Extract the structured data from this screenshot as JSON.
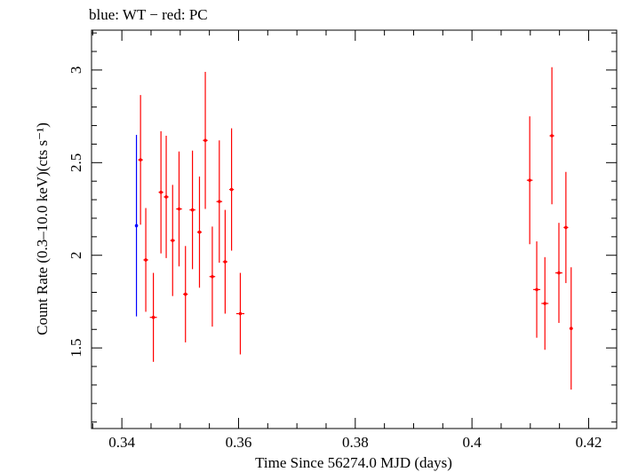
{
  "chart_data": {
    "type": "scatter",
    "title": "blue: WT − red: PC",
    "xlabel": "Time Since 56274.0 MJD (days)",
    "ylabel": "Count Rate (0.3–10.0 keV)(cts s⁻¹)",
    "xlim": [
      0.3348,
      0.4248
    ],
    "ylim": [
      1.065,
      3.215
    ],
    "xticks": [
      0.34,
      0.36,
      0.38,
      0.4,
      0.42
    ],
    "xtick_labels": [
      "0.34",
      "0.36",
      "0.38",
      "0.4",
      "0.42"
    ],
    "yticks": [
      1.5,
      2,
      2.5,
      3
    ],
    "ytick_labels": [
      "1.5",
      "2",
      "2.5",
      "3"
    ],
    "grid": false,
    "series": [
      {
        "name": "WT",
        "color": "#0000ff",
        "points": [
          {
            "x": 0.3425,
            "y": 2.16,
            "yerr": 0.49,
            "xerr": 0.0
          }
        ]
      },
      {
        "name": "PC",
        "color": "#ff0000",
        "points": [
          {
            "x": 0.3432,
            "y": 2.515,
            "yerr": 0.35,
            "xerr": 0.0004
          },
          {
            "x": 0.3441,
            "y": 1.975,
            "yerr": 0.28,
            "xerr": 0.0004
          },
          {
            "x": 0.3454,
            "y": 1.665,
            "yerr": 0.24,
            "xerr": 0.0006
          },
          {
            "x": 0.3467,
            "y": 2.34,
            "yerr": 0.33,
            "xerr": 0.0004
          },
          {
            "x": 0.3476,
            "y": 2.315,
            "yerr": 0.33,
            "xerr": 0.0004
          },
          {
            "x": 0.3487,
            "y": 2.08,
            "yerr": 0.3,
            "xerr": 0.0004
          },
          {
            "x": 0.3498,
            "y": 2.25,
            "yerr": 0.31,
            "xerr": 0.0005
          },
          {
            "x": 0.3509,
            "y": 1.79,
            "yerr": 0.26,
            "xerr": 0.0004
          },
          {
            "x": 0.3521,
            "y": 2.245,
            "yerr": 0.32,
            "xerr": 0.0005
          },
          {
            "x": 0.3533,
            "y": 2.125,
            "yerr": 0.3,
            "xerr": 0.0004
          },
          {
            "x": 0.3543,
            "y": 2.62,
            "yerr": 0.37,
            "xerr": 0.0004
          },
          {
            "x": 0.3555,
            "y": 1.885,
            "yerr": 0.27,
            "xerr": 0.0005
          },
          {
            "x": 0.3567,
            "y": 2.29,
            "yerr": 0.33,
            "xerr": 0.0005
          },
          {
            "x": 0.3577,
            "y": 1.965,
            "yerr": 0.28,
            "xerr": 0.0004
          },
          {
            "x": 0.3588,
            "y": 2.355,
            "yerr": 0.33,
            "xerr": 0.0004
          },
          {
            "x": 0.3603,
            "y": 1.685,
            "yerr": 0.22,
            "xerr": 0.0007
          },
          {
            "x": 0.4099,
            "y": 2.405,
            "yerr": 0.345,
            "xerr": 0.0005
          },
          {
            "x": 0.4111,
            "y": 1.815,
            "yerr": 0.26,
            "xerr": 0.0006
          },
          {
            "x": 0.4125,
            "y": 1.74,
            "yerr": 0.25,
            "xerr": 0.0006
          },
          {
            "x": 0.4137,
            "y": 2.645,
            "yerr": 0.37,
            "xerr": 0.0004
          },
          {
            "x": 0.4149,
            "y": 1.905,
            "yerr": 0.27,
            "xerr": 0.0006
          },
          {
            "x": 0.4161,
            "y": 2.15,
            "yerr": 0.3,
            "xerr": 0.0004
          },
          {
            "x": 0.417,
            "y": 1.605,
            "yerr": 0.33,
            "xerr": 0.0003
          }
        ]
      }
    ]
  }
}
